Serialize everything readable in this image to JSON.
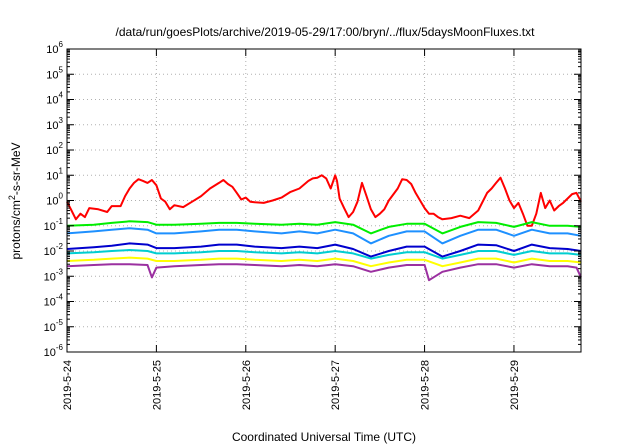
{
  "chart_data": {
    "type": "line",
    "title": "/data/run/goesPlots/archive/2019-05-29/17:00/bryn/../flux/5daysMoonFluxes.txt",
    "xlabel": "Coordinated Universal Time (UTC)",
    "ylabel_parts": [
      "protons/cm",
      "2",
      "-s-sr-MeV"
    ],
    "y_scale": "log",
    "ylim": [
      1e-06,
      1000000.0
    ],
    "xlim": [
      0,
      5.75
    ],
    "grid": true,
    "x_ticks": [
      {
        "x": 0,
        "label": "2019-5-24"
      },
      {
        "x": 1,
        "label": "2019-5-25"
      },
      {
        "x": 2,
        "label": "2019-5-26"
      },
      {
        "x": 3,
        "label": "2019-5-27"
      },
      {
        "x": 4,
        "label": "2019-5-28"
      },
      {
        "x": 5,
        "label": "2019-5-29"
      }
    ],
    "y_ticks": [
      {
        "v": 1000000.0,
        "base": "10",
        "exp": "6"
      },
      {
        "v": 100000.0,
        "base": "10",
        "exp": "5"
      },
      {
        "v": 10000.0,
        "base": "10",
        "exp": "4"
      },
      {
        "v": 1000.0,
        "base": "10",
        "exp": "3"
      },
      {
        "v": 100.0,
        "base": "10",
        "exp": "2"
      },
      {
        "v": 10.0,
        "base": "10",
        "exp": "1"
      },
      {
        "v": 1.0,
        "base": "10",
        "exp": "0"
      },
      {
        "v": 0.1,
        "base": "10",
        "exp": "-1"
      },
      {
        "v": 0.01,
        "base": "10",
        "exp": "-2"
      },
      {
        "v": 0.001,
        "base": "10",
        "exp": "-3"
      },
      {
        "v": 0.0001,
        "base": "10",
        "exp": "-4"
      },
      {
        "v": 1e-05,
        "base": "10",
        "exp": "-5"
      },
      {
        "v": 1e-06,
        "base": "10",
        "exp": "-6"
      }
    ],
    "series": [
      {
        "color": "#ff0000",
        "x": [
          0,
          0.05,
          0.1,
          0.15,
          0.2,
          0.25,
          0.35,
          0.45,
          0.5,
          0.6,
          0.65,
          0.7,
          0.75,
          0.8,
          0.85,
          0.9,
          0.95,
          1.0,
          1.05,
          1.1,
          1.15,
          1.2,
          1.3,
          1.4,
          1.5,
          1.6,
          1.7,
          1.75,
          1.8,
          1.85,
          1.9,
          1.95,
          2.0,
          2.05,
          2.1,
          2.2,
          2.3,
          2.4,
          2.5,
          2.6,
          2.7,
          2.75,
          2.8,
          2.85,
          2.9,
          2.95,
          3.0,
          3.02,
          3.05,
          3.1,
          3.15,
          3.2,
          3.25,
          3.3,
          3.35,
          3.4,
          3.45,
          3.5,
          3.55,
          3.6,
          3.7,
          3.75,
          3.8,
          3.85,
          3.9,
          3.95,
          4.0,
          4.05,
          4.1,
          4.15,
          4.2,
          4.3,
          4.4,
          4.5,
          4.6,
          4.7,
          4.75,
          4.8,
          4.85,
          4.9,
          4.95,
          5.0,
          5.05,
          5.1,
          5.15,
          5.2,
          5.25,
          5.3,
          5.35,
          5.4,
          5.45,
          5.5,
          5.55,
          5.6,
          5.65,
          5.7,
          5.75
        ],
        "y": [
          0.9,
          0.4,
          0.18,
          0.3,
          0.22,
          0.5,
          0.45,
          0.35,
          0.6,
          0.6,
          1.5,
          3,
          5,
          7,
          6,
          5,
          6.5,
          4,
          1.2,
          0.9,
          0.45,
          0.65,
          0.55,
          0.9,
          1.5,
          3,
          5,
          6.5,
          4.5,
          3.5,
          2,
          1.1,
          1.3,
          0.9,
          0.85,
          0.8,
          1,
          1.3,
          2.2,
          3,
          6,
          7.5,
          8,
          10,
          7.5,
          3,
          10,
          6,
          1.2,
          0.5,
          0.22,
          0.35,
          0.9,
          5,
          1.5,
          0.45,
          0.22,
          0.3,
          0.45,
          1,
          3,
          7,
          6.5,
          4.5,
          2,
          1,
          0.5,
          0.3,
          0.3,
          0.22,
          0.18,
          0.2,
          0.25,
          0.2,
          0.4,
          2,
          3,
          5,
          8,
          3,
          1,
          0.5,
          0.8,
          0.3,
          0.1,
          0.1,
          0.3,
          2,
          0.5,
          1,
          0.4,
          0.6,
          0.8,
          1.2,
          1.8,
          2,
          0.9
        ]
      },
      {
        "color": "#00ee00",
        "x": [
          0,
          0.3,
          0.5,
          0.7,
          0.9,
          1.0,
          1.2,
          1.5,
          1.7,
          1.9,
          2.1,
          2.4,
          2.6,
          2.8,
          3.0,
          3.2,
          3.4,
          3.6,
          3.8,
          4.0,
          4.2,
          4.4,
          4.6,
          4.8,
          5.0,
          5.2,
          5.4,
          5.6,
          5.75
        ],
        "y": [
          0.1,
          0.11,
          0.13,
          0.15,
          0.14,
          0.11,
          0.11,
          0.12,
          0.13,
          0.13,
          0.12,
          0.11,
          0.12,
          0.11,
          0.14,
          0.11,
          0.05,
          0.09,
          0.12,
          0.12,
          0.05,
          0.09,
          0.14,
          0.13,
          0.09,
          0.14,
          0.1,
          0.1,
          0.09
        ]
      },
      {
        "color": "#1e90ff",
        "x": [
          0,
          0.3,
          0.5,
          0.7,
          0.9,
          1.0,
          1.2,
          1.5,
          1.7,
          1.9,
          2.1,
          2.4,
          2.6,
          2.8,
          3.0,
          3.2,
          3.4,
          3.6,
          3.8,
          4.0,
          4.2,
          4.4,
          4.6,
          4.8,
          5.0,
          5.2,
          5.4,
          5.6,
          5.75
        ],
        "y": [
          0.05,
          0.06,
          0.07,
          0.08,
          0.07,
          0.05,
          0.05,
          0.06,
          0.07,
          0.07,
          0.06,
          0.05,
          0.06,
          0.05,
          0.07,
          0.05,
          0.02,
          0.04,
          0.06,
          0.06,
          0.02,
          0.04,
          0.07,
          0.07,
          0.04,
          0.07,
          0.05,
          0.05,
          0.04
        ]
      },
      {
        "color": "#0000cd",
        "x": [
          0,
          0.3,
          0.5,
          0.7,
          0.9,
          1.0,
          1.2,
          1.5,
          1.7,
          1.9,
          2.1,
          2.4,
          2.6,
          2.8,
          3.0,
          3.2,
          3.4,
          3.6,
          3.8,
          4.0,
          4.2,
          4.4,
          4.6,
          4.8,
          5.0,
          5.2,
          5.4,
          5.6,
          5.75
        ],
        "y": [
          0.012,
          0.014,
          0.016,
          0.02,
          0.018,
          0.013,
          0.013,
          0.015,
          0.018,
          0.018,
          0.015,
          0.013,
          0.015,
          0.013,
          0.018,
          0.012,
          0.006,
          0.01,
          0.015,
          0.015,
          0.006,
          0.01,
          0.018,
          0.017,
          0.01,
          0.018,
          0.013,
          0.012,
          0.01
        ]
      },
      {
        "color": "#00ced1",
        "x": [
          0,
          0.3,
          0.5,
          0.7,
          0.9,
          1.0,
          1.2,
          1.5,
          1.7,
          1.9,
          2.1,
          2.4,
          2.6,
          2.8,
          3.0,
          3.2,
          3.4,
          3.6,
          3.8,
          4.0,
          4.2,
          4.4,
          4.6,
          4.8,
          5.0,
          5.2,
          5.4,
          5.6,
          5.75
        ],
        "y": [
          0.008,
          0.009,
          0.01,
          0.011,
          0.01,
          0.008,
          0.008,
          0.009,
          0.01,
          0.01,
          0.009,
          0.008,
          0.009,
          0.008,
          0.01,
          0.008,
          0.005,
          0.007,
          0.009,
          0.009,
          0.005,
          0.007,
          0.01,
          0.01,
          0.007,
          0.01,
          0.008,
          0.008,
          0.007
        ]
      },
      {
        "color": "#ffff00",
        "x": [
          0,
          0.3,
          0.5,
          0.7,
          0.9,
          1.0,
          1.2,
          1.5,
          1.7,
          1.9,
          2.1,
          2.4,
          2.6,
          2.8,
          3.0,
          3.2,
          3.4,
          3.6,
          3.8,
          4.0,
          4.2,
          4.4,
          4.6,
          4.8,
          5.0,
          5.2,
          5.4,
          5.6,
          5.75
        ],
        "y": [
          0.004,
          0.0045,
          0.005,
          0.0055,
          0.005,
          0.004,
          0.004,
          0.0045,
          0.005,
          0.005,
          0.0045,
          0.004,
          0.0045,
          0.004,
          0.005,
          0.004,
          0.0025,
          0.0035,
          0.0045,
          0.0045,
          0.0025,
          0.0035,
          0.005,
          0.005,
          0.0035,
          0.005,
          0.004,
          0.004,
          0.0035
        ]
      },
      {
        "color": "#9b30a0",
        "x": [
          0,
          0.3,
          0.5,
          0.7,
          0.9,
          0.95,
          1.0,
          1.2,
          1.5,
          1.7,
          1.9,
          2.1,
          2.4,
          2.6,
          2.8,
          3.0,
          3.2,
          3.4,
          3.6,
          3.8,
          4.0,
          4.05,
          4.2,
          4.4,
          4.6,
          4.8,
          5.0,
          5.2,
          5.4,
          5.6,
          5.7,
          5.75
        ],
        "y": [
          0.0025,
          0.0028,
          0.003,
          0.003,
          0.0028,
          0.0009,
          0.0022,
          0.0025,
          0.0028,
          0.003,
          0.003,
          0.0028,
          0.0025,
          0.0028,
          0.0025,
          0.003,
          0.0025,
          0.0015,
          0.0022,
          0.0028,
          0.0028,
          0.0007,
          0.0015,
          0.0022,
          0.003,
          0.003,
          0.0022,
          0.003,
          0.0025,
          0.0025,
          0.0022,
          0.0009
        ]
      }
    ]
  }
}
